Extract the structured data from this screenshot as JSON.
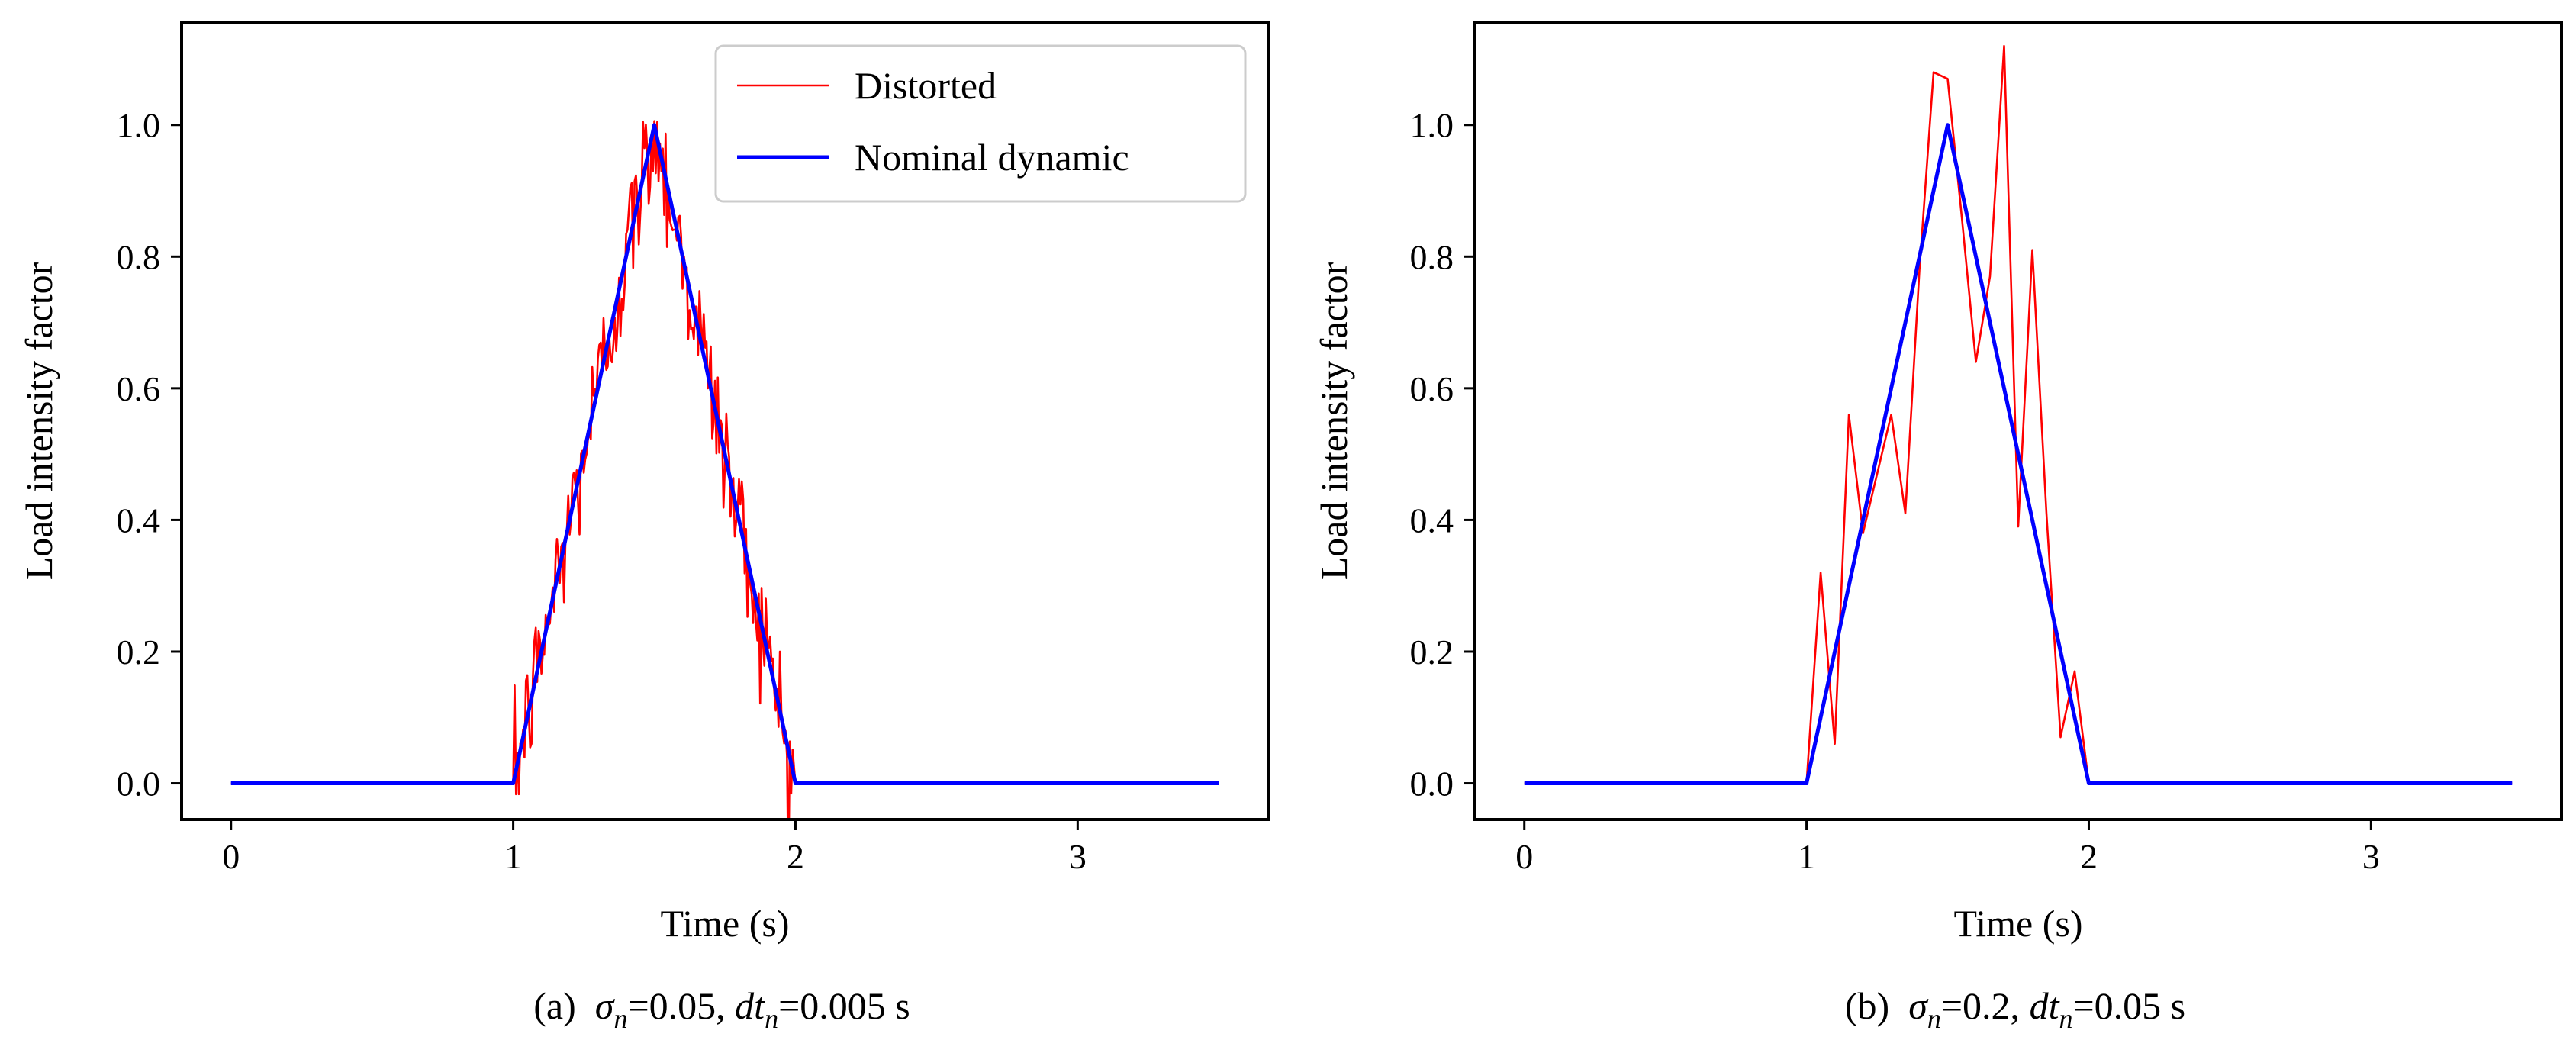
{
  "chart_data": [
    {
      "type": "line",
      "xlabel": "Time (s)",
      "ylabel": "Load intensity factor",
      "xlim": [
        -0.175,
        3.675
      ],
      "ylim": [
        -0.055,
        1.155
      ],
      "xticks": [
        0,
        1,
        2,
        3
      ],
      "xtick_labels": [
        "0",
        "1",
        "2",
        "3"
      ],
      "yticks": [
        0.0,
        0.2,
        0.4,
        0.6,
        0.8,
        1.0
      ],
      "ytick_labels": [
        "0.0",
        "0.2",
        "0.4",
        "0.6",
        "0.8",
        "1.0"
      ],
      "caption": {
        "prefix": "(a)",
        "sigma_symbol": "σ",
        "sigma_sub": "n",
        "sigma_value": "=0.05, ",
        "dt_symbol": "dt",
        "dt_sub": "n",
        "dt_value": "=0.005 s"
      },
      "legend": {
        "location": "upper right",
        "entries": [
          {
            "label": "Distorted",
            "color": "#ff0000"
          },
          {
            "label": "Nominal dynamic",
            "color": "#0000ff"
          }
        ]
      },
      "series": [
        {
          "name": "Distorted",
          "color": "#ff0000",
          "step": 0.005,
          "x_start": 1.0,
          "x_end": 2.0,
          "noise_sigma": 0.05,
          "baseline": {
            "x": [
              0,
              1.0,
              2.0,
              3.5
            ],
            "y": [
              0,
              0,
              0,
              0
            ]
          }
        },
        {
          "name": "Nominal dynamic",
          "color": "#0000ff",
          "x": [
            0,
            1.0,
            1.5,
            2.0,
            3.5
          ],
          "y": [
            0,
            0,
            1.0,
            0,
            0
          ]
        }
      ]
    },
    {
      "type": "line",
      "xlabel": "Time (s)",
      "ylabel": "Load intensity factor",
      "xlim": [
        -0.175,
        3.675
      ],
      "ylim": [
        -0.055,
        1.155
      ],
      "xticks": [
        0,
        1,
        2,
        3
      ],
      "xtick_labels": [
        "0",
        "1",
        "2",
        "3"
      ],
      "yticks": [
        0.0,
        0.2,
        0.4,
        0.6,
        0.8,
        1.0
      ],
      "ytick_labels": [
        "0.0",
        "0.2",
        "0.4",
        "0.6",
        "0.8",
        "1.0"
      ],
      "caption": {
        "prefix": "(b)",
        "sigma_symbol": "σ",
        "sigma_sub": "n",
        "sigma_value": "=0.2, ",
        "dt_symbol": "dt",
        "dt_sub": "n",
        "dt_value": "=0.05 s"
      },
      "series": [
        {
          "name": "Distorted",
          "color": "#ff0000",
          "x": [
            0,
            1.0,
            1.05,
            1.1,
            1.15,
            1.2,
            1.25,
            1.3,
            1.35,
            1.4,
            1.45,
            1.5,
            1.55,
            1.6,
            1.65,
            1.7,
            1.75,
            1.8,
            1.85,
            1.9,
            1.95,
            2.0,
            3.5
          ],
          "y": [
            0,
            0,
            0.32,
            0.06,
            0.56,
            0.38,
            0.47,
            0.56,
            0.41,
            0.78,
            1.08,
            1.07,
            0.86,
            0.64,
            0.77,
            1.12,
            0.39,
            0.81,
            0.41,
            0.07,
            0.17,
            0,
            0
          ]
        },
        {
          "name": "Nominal dynamic",
          "color": "#0000ff",
          "x": [
            0,
            1.0,
            1.5,
            2.0,
            3.5
          ],
          "y": [
            0,
            0,
            1.0,
            0,
            0
          ]
        }
      ]
    }
  ]
}
